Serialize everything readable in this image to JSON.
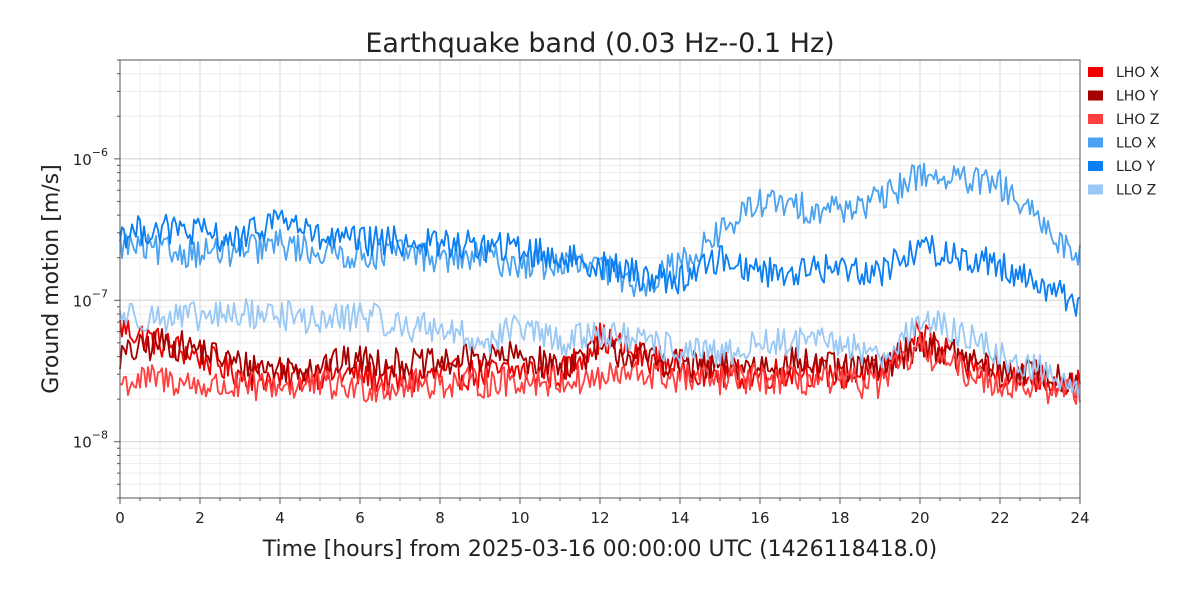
{
  "chart_data": {
    "type": "line",
    "title": "Earthquake band (0.03 Hz--0.1 Hz)",
    "xlabel": "Time [hours] from 2025-03-16 00:00:00 UTC (1426118418.0)",
    "ylabel": "Ground motion [m/s]",
    "xlim": [
      0,
      24
    ],
    "ylim": [
      4e-09,
      5e-06
    ],
    "yscale": "log",
    "x_ticks": [
      "0",
      "2",
      "4",
      "6",
      "8",
      "10",
      "12",
      "14",
      "16",
      "18",
      "20",
      "22",
      "24"
    ],
    "y_ticks": [
      {
        "base": "10",
        "exp": "−8",
        "value": 1e-08
      },
      {
        "base": "10",
        "exp": "−7",
        "value": 1e-07
      },
      {
        "base": "10",
        "exp": "−6",
        "value": 1e-06
      }
    ],
    "grid": true,
    "legend_position": "right",
    "x": [
      0,
      1,
      2,
      3,
      4,
      5,
      6,
      7,
      8,
      9,
      10,
      11,
      12,
      13,
      14,
      15,
      16,
      17,
      18,
      19,
      20,
      21,
      22,
      23,
      24
    ],
    "series": [
      {
        "name": "LHO X",
        "color": "#ee0000",
        "values": [
          6.5e-08,
          5e-08,
          4e-08,
          3e-08,
          2.8e-08,
          3e-08,
          3e-08,
          2.6e-08,
          3e-08,
          3e-08,
          3.2e-08,
          3e-08,
          5.5e-08,
          4e-08,
          3.5e-08,
          3e-08,
          3e-08,
          3.2e-08,
          3e-08,
          3e-08,
          6e-08,
          3.5e-08,
          3e-08,
          2.8e-08,
          2.5e-08
        ]
      },
      {
        "name": "LHO Y",
        "color": "#a40000",
        "values": [
          4e-08,
          5e-08,
          4.5e-08,
          3.5e-08,
          3.3e-08,
          3.5e-08,
          3.8e-08,
          3.6e-08,
          3.5e-08,
          4e-08,
          4e-08,
          3.4e-08,
          4.5e-08,
          4e-08,
          3.5e-08,
          3.3e-08,
          3.5e-08,
          3.7e-08,
          3.3e-08,
          3.3e-08,
          5e-08,
          4e-08,
          3.2e-08,
          3e-08,
          2.8e-08
        ]
      },
      {
        "name": "LHO Z",
        "color": "#ff4040",
        "values": [
          2.6e-08,
          2.8e-08,
          2.5e-08,
          2.4e-08,
          2.5e-08,
          2.5e-08,
          2.4e-08,
          2.5e-08,
          2.6e-08,
          2.6e-08,
          2.7e-08,
          2.7e-08,
          2.8e-08,
          3e-08,
          2.8e-08,
          2.7e-08,
          2.8e-08,
          2.7e-08,
          2.6e-08,
          2.6e-08,
          4.5e-08,
          3.2e-08,
          2.6e-08,
          2.4e-08,
          2.3e-08
        ]
      },
      {
        "name": "LLO X",
        "color": "#4ba2f0",
        "values": [
          2.5e-07,
          2.2e-07,
          2.2e-07,
          2.2e-07,
          2.5e-07,
          2.2e-07,
          2.1e-07,
          2.2e-07,
          2e-07,
          2e-07,
          1.8e-07,
          1.8e-07,
          1.7e-07,
          1.3e-07,
          1.8e-07,
          3e-07,
          5e-07,
          4.5e-07,
          4.5e-07,
          5e-07,
          8e-07,
          7e-07,
          6.5e-07,
          3.5e-07,
          2e-07
        ]
      },
      {
        "name": "LLO Y",
        "color": "#0b7ef2",
        "values": [
          3e-07,
          3.2e-07,
          3e-07,
          2.6e-07,
          4e-07,
          2.7e-07,
          2.6e-07,
          2.6e-07,
          2.5e-07,
          2.4e-07,
          2.3e-07,
          2e-07,
          1.8e-07,
          1.5e-07,
          1.4e-07,
          2e-07,
          1.6e-07,
          1.6e-07,
          1.7e-07,
          1.6e-07,
          2.4e-07,
          2e-07,
          1.8e-07,
          1.3e-07,
          9.5e-08
        ]
      },
      {
        "name": "LLO Z",
        "color": "#99c8f5",
        "values": [
          8e-08,
          7.5e-08,
          7.5e-08,
          8e-08,
          8e-08,
          7e-08,
          8e-08,
          6.5e-08,
          6.5e-08,
          5e-08,
          6.5e-08,
          5e-08,
          6e-08,
          5e-08,
          4.5e-08,
          4e-08,
          5e-08,
          5e-08,
          5e-08,
          4e-08,
          7e-08,
          6e-08,
          4e-08,
          3.2e-08,
          2.6e-08
        ]
      }
    ]
  }
}
